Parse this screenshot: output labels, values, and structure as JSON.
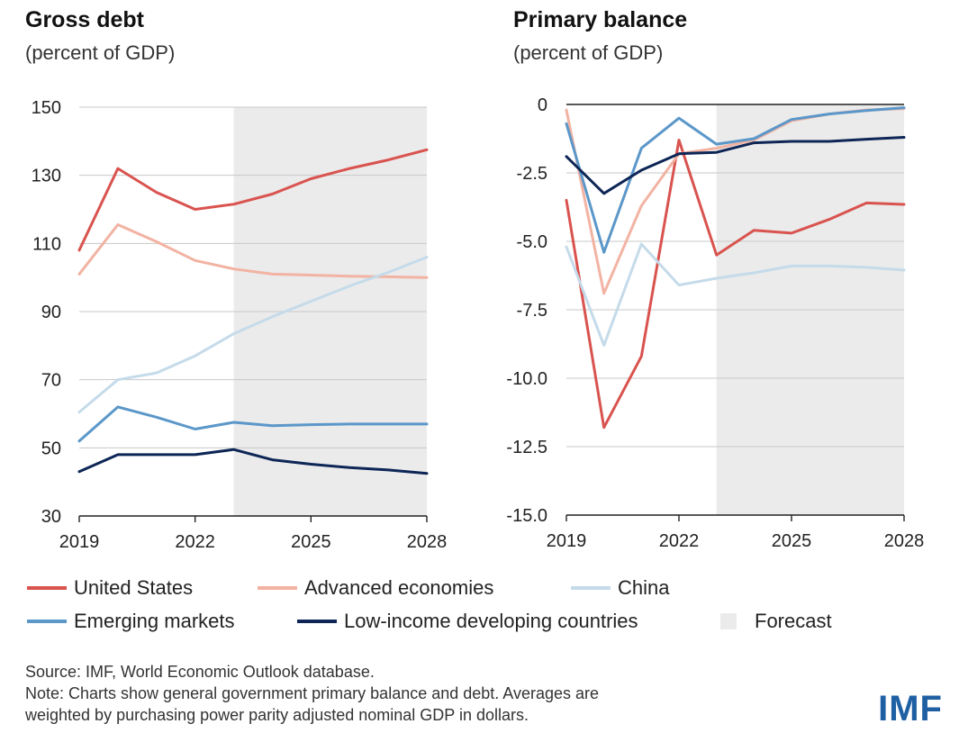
{
  "chart_data": [
    {
      "type": "line",
      "title": "Gross debt",
      "subtitle": "(percent of GDP)",
      "x": [
        2019,
        2020,
        2021,
        2022,
        2023,
        2024,
        2025,
        2026,
        2027,
        2028
      ],
      "xticks": [
        "2019",
        "2022",
        "2025",
        "2028"
      ],
      "yticks": [
        "150",
        "130",
        "110",
        "90",
        "70",
        "50",
        "30"
      ],
      "ylim": [
        30,
        150
      ],
      "forecast_start": 2023,
      "series": [
        {
          "name": "United States",
          "color": "#d9534f",
          "values": [
            108,
            132,
            125,
            120,
            121.5,
            124.5,
            129,
            132,
            134.5,
            137.5
          ]
        },
        {
          "name": "Advanced economies",
          "color": "#f2b3a3",
          "values": [
            101,
            115.5,
            110.5,
            105,
            102.5,
            101,
            100.7,
            100.4,
            100.2,
            100
          ]
        },
        {
          "name": "China",
          "color": "#c5dbea",
          "values": [
            60.5,
            70,
            72,
            77,
            83.5,
            88.5,
            93,
            97.5,
            101.5,
            106
          ]
        },
        {
          "name": "Emerging markets",
          "color": "#5b97c9",
          "values": [
            52,
            62,
            59,
            55.5,
            57.5,
            56.5,
            56.8,
            57,
            57,
            57
          ]
        },
        {
          "name": "Low-income developing countries",
          "color": "#0d2656",
          "values": [
            43,
            48,
            48,
            48,
            49.5,
            46.5,
            45.2,
            44.2,
            43.5,
            42.5
          ]
        }
      ]
    },
    {
      "type": "line",
      "title": "Primary balance",
      "subtitle": "(percent of GDP)",
      "x": [
        2019,
        2020,
        2021,
        2022,
        2023,
        2024,
        2025,
        2026,
        2027,
        2028
      ],
      "xticks": [
        "2019",
        "2022",
        "2025",
        "2028"
      ],
      "yticks": [
        "0",
        "-2.5",
        "-5.0",
        "-7.5",
        "-10.0",
        "-12.5",
        "-15.0"
      ],
      "ylim": [
        -15,
        0
      ],
      "forecast_start": 2023,
      "series": [
        {
          "name": "United States",
          "color": "#d9534f",
          "values": [
            -3.5,
            -11.8,
            -9.2,
            -1.3,
            -5.5,
            -4.6,
            -4.7,
            -4.2,
            -3.6,
            -3.65
          ]
        },
        {
          "name": "Advanced economies",
          "color": "#f2b3a3",
          "values": [
            -0.2,
            -6.9,
            -3.7,
            -1.8,
            -1.6,
            -1.3,
            -0.6,
            -0.35,
            -0.2,
            -0.15
          ]
        },
        {
          "name": "China",
          "color": "#c5dbea",
          "values": [
            -5.2,
            -8.8,
            -5.1,
            -6.6,
            -6.35,
            -6.15,
            -5.9,
            -5.9,
            -5.95,
            -6.05
          ]
        },
        {
          "name": "Emerging markets",
          "color": "#5b97c9",
          "values": [
            -0.7,
            -5.4,
            -1.6,
            -0.5,
            -1.45,
            -1.25,
            -0.55,
            -0.35,
            -0.22,
            -0.12
          ]
        },
        {
          "name": "Low-income developing countries",
          "color": "#0d2656",
          "values": [
            -1.9,
            -3.25,
            -2.4,
            -1.8,
            -1.75,
            -1.4,
            -1.35,
            -1.35,
            -1.27,
            -1.2
          ]
        }
      ]
    }
  ],
  "legend": {
    "items": [
      {
        "label": "United States",
        "color": "#d9534f"
      },
      {
        "label": "Advanced economies",
        "color": "#f2b3a3"
      },
      {
        "label": "China",
        "color": "#c5dbea"
      },
      {
        "label": "Emerging markets",
        "color": "#5b97c9"
      },
      {
        "label": "Low-income developing countries",
        "color": "#0d2656"
      }
    ],
    "forecast_label": "Forecast",
    "forecast_color": "#ebebeb"
  },
  "notes": {
    "source": "Source: IMF, World Economic Outlook database.",
    "note_line1": "Note: Charts show general government primary balance and debt. Averages are",
    "note_line2": "weighted by purchasing power parity adjusted nominal GDP in dollars."
  },
  "logo": "IMF"
}
